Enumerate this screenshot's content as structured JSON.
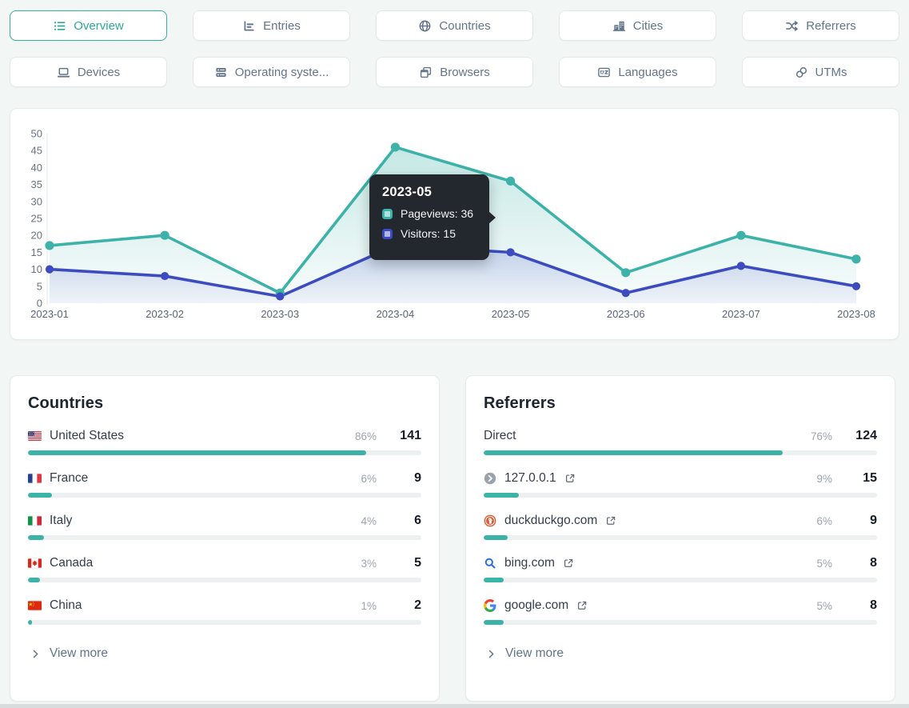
{
  "nav": {
    "rows": [
      [
        {
          "id": "overview",
          "label": "Overview",
          "icon": "list",
          "active": true
        },
        {
          "id": "entries",
          "label": "Entries",
          "icon": "bar-chart",
          "active": false
        },
        {
          "id": "countries",
          "label": "Countries",
          "icon": "globe",
          "active": false
        },
        {
          "id": "cities",
          "label": "Cities",
          "icon": "buildings",
          "active": false
        },
        {
          "id": "referrers",
          "label": "Referrers",
          "icon": "shuffle",
          "active": false
        }
      ],
      [
        {
          "id": "devices",
          "label": "Devices",
          "icon": "laptop",
          "active": false
        },
        {
          "id": "operating-systems",
          "label": "Operating syste...",
          "icon": "server",
          "active": false
        },
        {
          "id": "browsers",
          "label": "Browsers",
          "icon": "windows",
          "active": false
        },
        {
          "id": "languages",
          "label": "Languages",
          "icon": "translate",
          "active": false
        },
        {
          "id": "utms",
          "label": "UTMs",
          "icon": "link",
          "active": false
        }
      ]
    ],
    "active_color": "#2da89c"
  },
  "chart_data": {
    "type": "line",
    "x": [
      "2023-01",
      "2023-02",
      "2023-03",
      "2023-04",
      "2023-05",
      "2023-06",
      "2023-07",
      "2023-08"
    ],
    "series": [
      {
        "name": "Pageviews",
        "color": "#3db2a8",
        "values": [
          17,
          20,
          3,
          46,
          36,
          9,
          20,
          13
        ]
      },
      {
        "name": "Visitors",
        "color": "#3c4cc0",
        "values": [
          10,
          8,
          2,
          17,
          15,
          3,
          11,
          5
        ]
      }
    ],
    "ylim": [
      0,
      50
    ],
    "yticks": [
      0,
      5,
      10,
      15,
      20,
      25,
      30,
      35,
      40,
      45,
      50
    ],
    "grid": false,
    "legend": "none",
    "tooltip": {
      "title": "2023-05",
      "rows": [
        {
          "name": "Pageviews",
          "value": 36,
          "color": "#3db2a8"
        },
        {
          "name": "Visitors",
          "value": 15,
          "color": "#3c4cc0"
        }
      ]
    }
  },
  "countries": {
    "title": "Countries",
    "rows": [
      {
        "icon": "flag-us",
        "label": "United States",
        "external": false,
        "percent": "86%",
        "count": "141",
        "bar_pct": 86
      },
      {
        "icon": "flag-fr",
        "label": "France",
        "external": false,
        "percent": "6%",
        "count": "9",
        "bar_pct": 6
      },
      {
        "icon": "flag-it",
        "label": "Italy",
        "external": false,
        "percent": "4%",
        "count": "6",
        "bar_pct": 4
      },
      {
        "icon": "flag-ca",
        "label": "Canada",
        "external": false,
        "percent": "3%",
        "count": "5",
        "bar_pct": 3
      },
      {
        "icon": "flag-cn",
        "label": "China",
        "external": false,
        "percent": "1%",
        "count": "2",
        "bar_pct": 1
      }
    ],
    "view_more": "View more"
  },
  "referrers": {
    "title": "Referrers",
    "rows": [
      {
        "icon": null,
        "label": "Direct",
        "external": false,
        "percent": "76%",
        "count": "124",
        "bar_pct": 76
      },
      {
        "icon": "localhost",
        "label": "127.0.0.1",
        "external": true,
        "percent": "9%",
        "count": "15",
        "bar_pct": 9
      },
      {
        "icon": "duckduckgo",
        "label": "duckduckgo.com",
        "external": true,
        "percent": "6%",
        "count": "9",
        "bar_pct": 6
      },
      {
        "icon": "bing",
        "label": "bing.com",
        "external": true,
        "percent": "5%",
        "count": "8",
        "bar_pct": 5
      },
      {
        "icon": "google",
        "label": "google.com",
        "external": true,
        "percent": "5%",
        "count": "8",
        "bar_pct": 5
      }
    ],
    "view_more": "View more"
  },
  "colors": {
    "bar_fill": "#3cb3a9",
    "bar_track": "#edf0f1",
    "page_bg": "#f2f6f5"
  }
}
